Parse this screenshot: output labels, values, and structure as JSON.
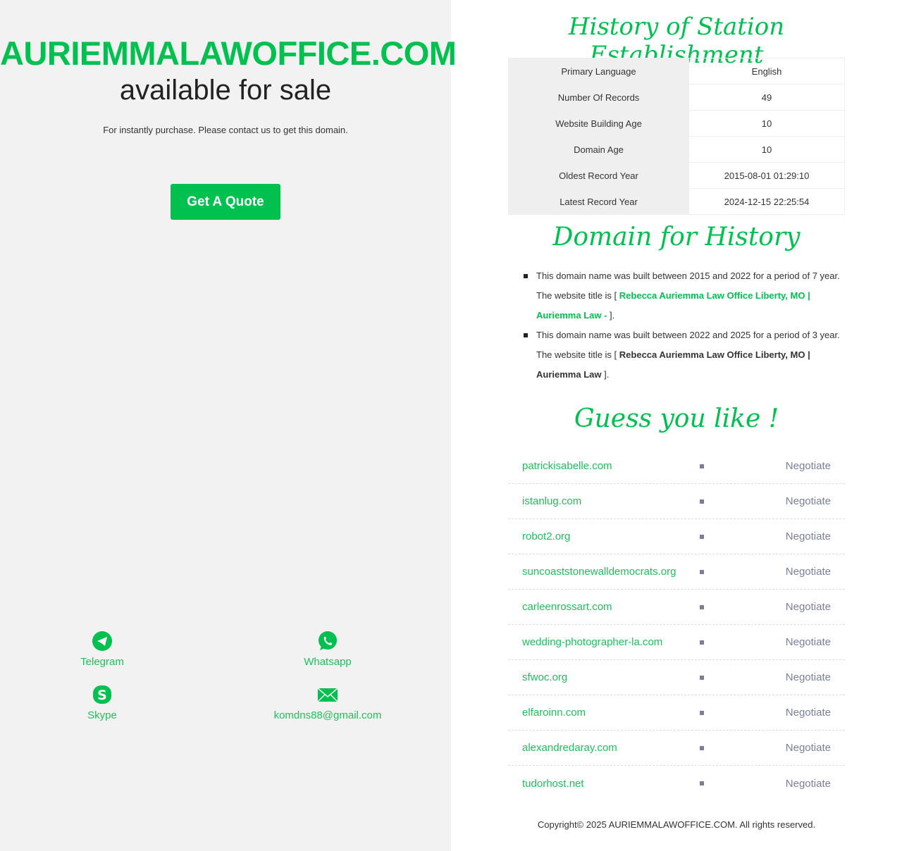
{
  "left": {
    "domain": "AURIEMMALAWOFFICE.COM",
    "available": "available for sale",
    "subtitle": "For instantly purchase. Please contact us to get this domain.",
    "quote_button": "Get A Quote",
    "contacts": [
      {
        "label": "Telegram",
        "icon": "telegram-icon"
      },
      {
        "label": "Whatsapp",
        "icon": "whatsapp-icon"
      },
      {
        "label": "Skype",
        "icon": "skype-icon"
      },
      {
        "label": "komdns88@gmail.com",
        "icon": "mail-icon"
      }
    ]
  },
  "right": {
    "history_title": "History of Station Establishment",
    "stats": [
      {
        "k": "Primary Language",
        "v": "English"
      },
      {
        "k": "Number Of Records",
        "v": "49"
      },
      {
        "k": "Website Building Age",
        "v": "10"
      },
      {
        "k": "Domain Age",
        "v": "10"
      },
      {
        "k": "Oldest Record Year",
        "v": "2015-08-01 01:29:10"
      },
      {
        "k": "Latest Record Year",
        "v": "2024-12-15 22:25:54"
      }
    ],
    "domain_history_title": "Domain for History",
    "history": [
      {
        "pre": "This domain name was built between 2015 and 2022 for a period of 7 year. The website title is [ ",
        "title": "Rebecca Auriemma Law Office Liberty, MO | Auriemma Law - ",
        "post": "]."
      },
      {
        "pre": "This domain name was built between 2022 and 2025 for a period of 3 year. The website title is [ ",
        "title": "Rebecca Auriemma Law Office Liberty, MO | Auriemma Law",
        "post": " ]."
      }
    ],
    "guess_title": "Guess you like !",
    "suggestions": [
      {
        "name": "patrickisabelle.com",
        "price": "Negotiate"
      },
      {
        "name": "istanlug.com",
        "price": "Negotiate"
      },
      {
        "name": "robot2.org",
        "price": "Negotiate"
      },
      {
        "name": "suncoaststonewalldemocrats.org",
        "price": "Negotiate"
      },
      {
        "name": "carleenrossart.com",
        "price": "Negotiate"
      },
      {
        "name": "wedding-photographer-la.com",
        "price": "Negotiate"
      },
      {
        "name": "sfwoc.org",
        "price": "Negotiate"
      },
      {
        "name": "elfaroinn.com",
        "price": "Negotiate"
      },
      {
        "name": "alexandredaray.com",
        "price": "Negotiate"
      },
      {
        "name": "tudorhost.net",
        "price": "Negotiate"
      }
    ],
    "copyright": "Copyright© 2025 AURIEMMALAWOFFICE.COM. All rights reserved."
  },
  "colors": {
    "accent": "#00c050",
    "muted": "#7a7f99"
  }
}
